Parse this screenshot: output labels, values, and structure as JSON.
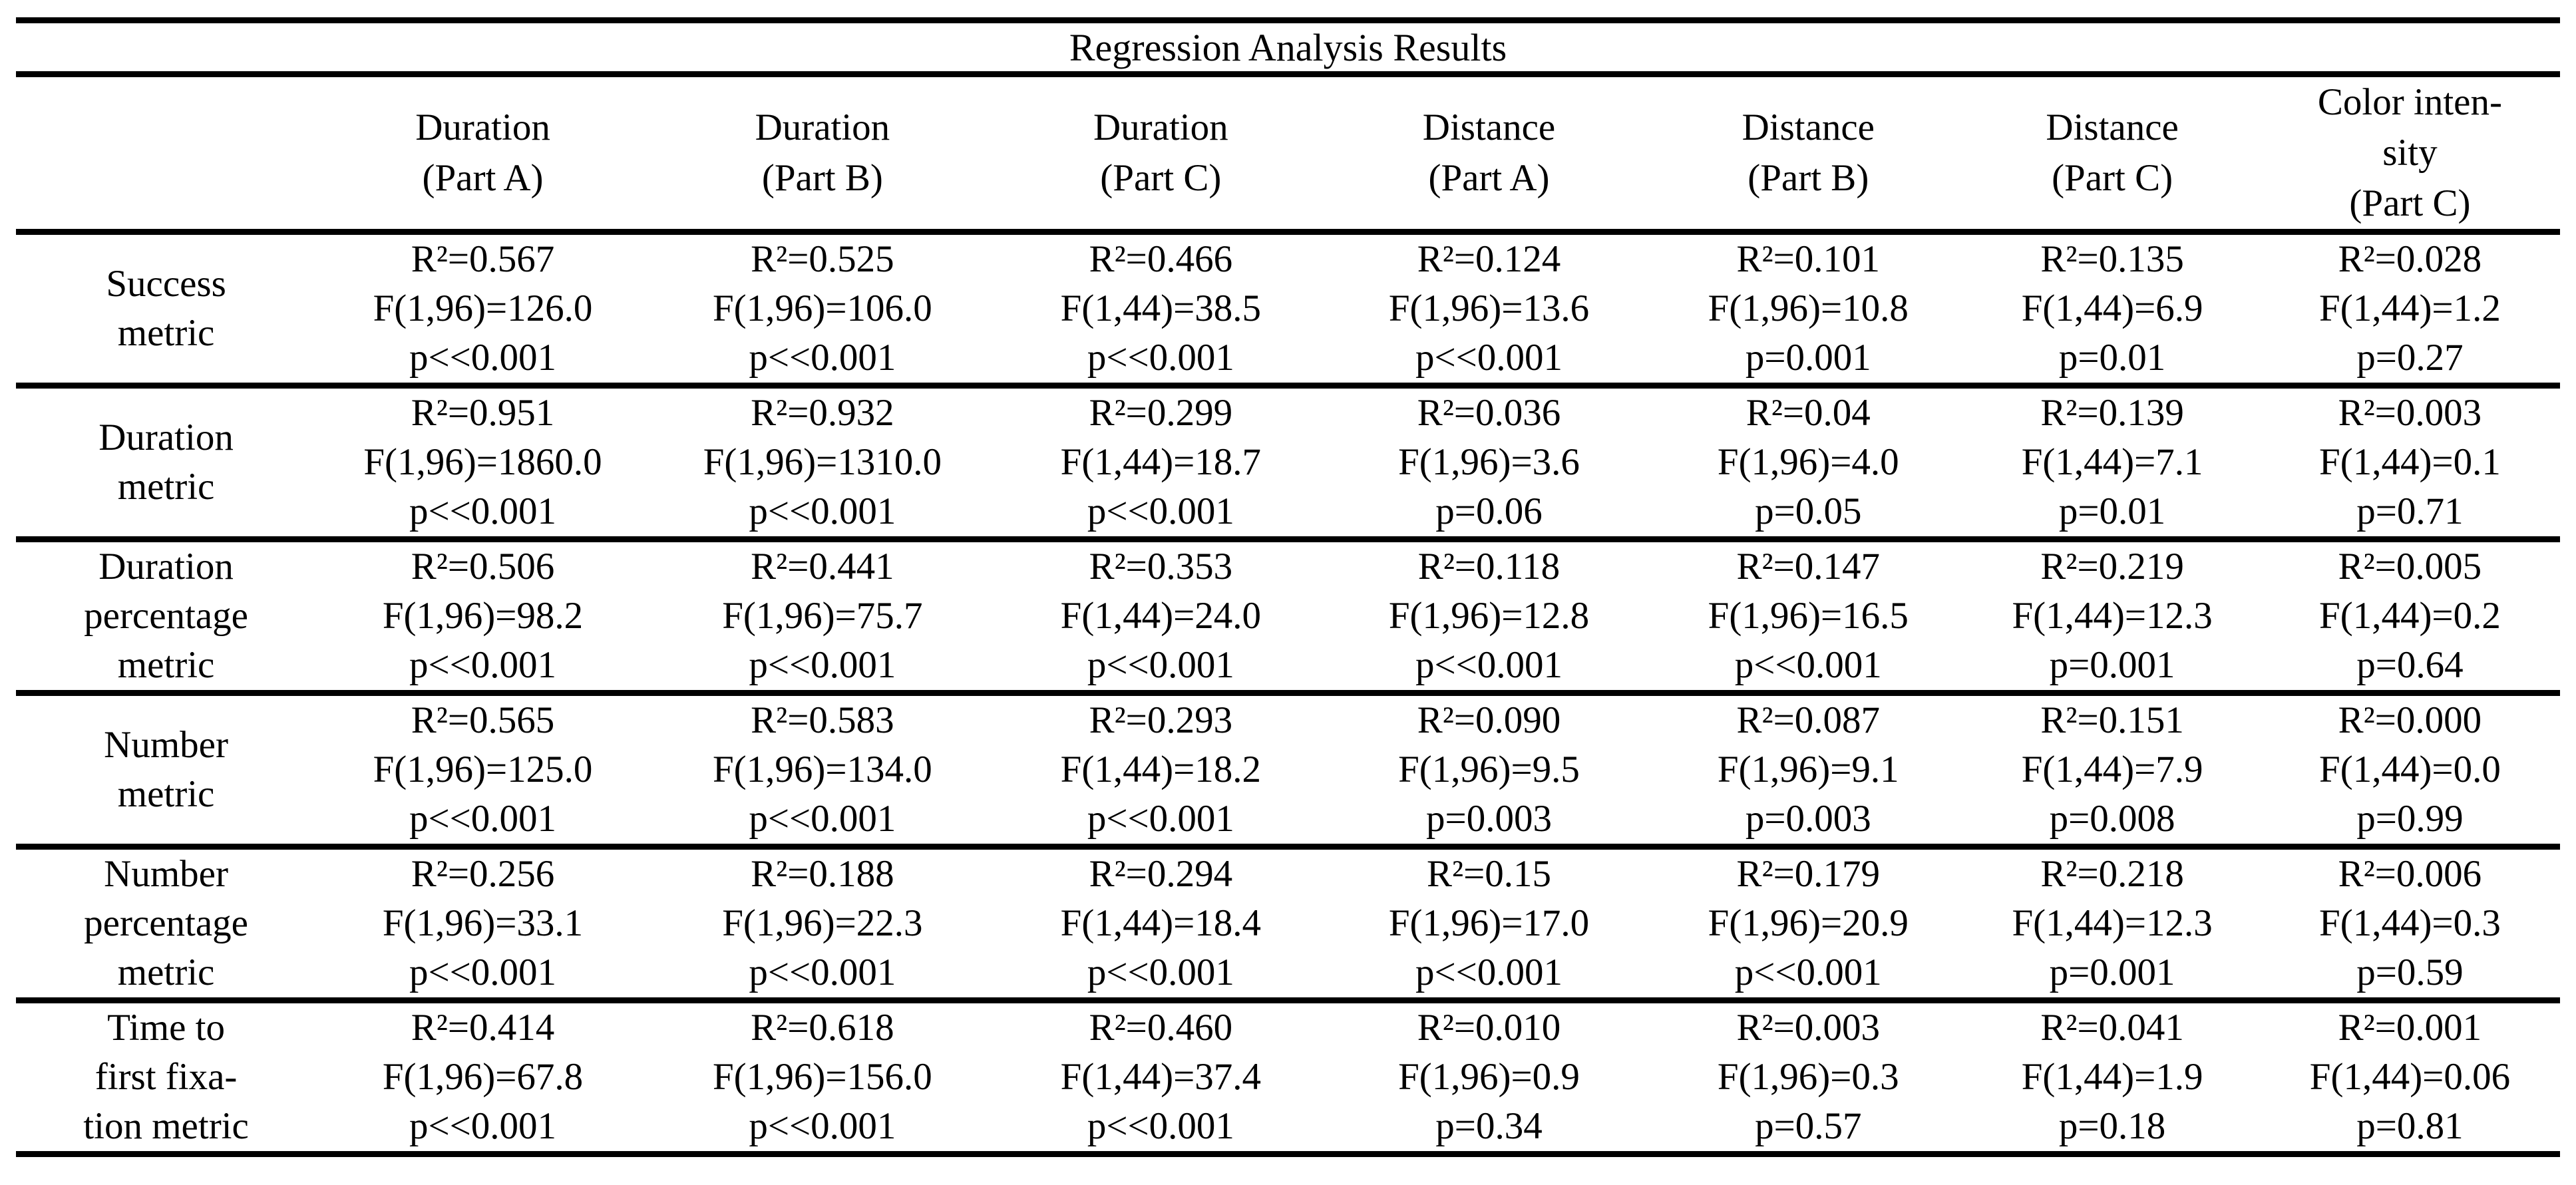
{
  "table": {
    "title": "Regression Analysis Results",
    "header": {
      "columns": [
        {
          "lines": [
            "Duration",
            "(Part A)"
          ]
        },
        {
          "lines": [
            "Duration",
            "(Part B)"
          ]
        },
        {
          "lines": [
            "Duration",
            "(Part C)"
          ]
        },
        {
          "lines": [
            "Distance",
            "(Part A)"
          ]
        },
        {
          "lines": [
            "Distance",
            "(Part B)"
          ]
        },
        {
          "lines": [
            "Distance",
            "(Part C)"
          ]
        },
        {
          "lines": [
            "Color inten-",
            "sity",
            "(Part C)"
          ]
        }
      ]
    },
    "rows": [
      {
        "label_lines": [
          "Success",
          "metric"
        ],
        "cells": [
          {
            "r2": "R²=0.567",
            "f": "F(1,96)=126.0",
            "p": "p<<0.001"
          },
          {
            "r2": "R²=0.525",
            "f": "F(1,96)=106.0",
            "p": "p<<0.001"
          },
          {
            "r2": "R²=0.466",
            "f": "F(1,44)=38.5",
            "p": "p<<0.001"
          },
          {
            "r2": "R²=0.124",
            "f": "F(1,96)=13.6",
            "p": "p<<0.001"
          },
          {
            "r2": "R²=0.101",
            "f": "F(1,96)=10.8",
            "p": "p=0.001"
          },
          {
            "r2": "R²=0.135",
            "f": "F(1,44)=6.9",
            "p": "p=0.01"
          },
          {
            "r2": "R²=0.028",
            "f": "F(1,44)=1.2",
            "p": "p=0.27"
          }
        ]
      },
      {
        "label_lines": [
          "Duration",
          "metric"
        ],
        "cells": [
          {
            "r2": "R²=0.951",
            "f": "F(1,96)=1860.0",
            "p": "p<<0.001"
          },
          {
            "r2": "R²=0.932",
            "f": "F(1,96)=1310.0",
            "p": "p<<0.001"
          },
          {
            "r2": "R²=0.299",
            "f": "F(1,44)=18.7",
            "p": "p<<0.001"
          },
          {
            "r2": "R²=0.036",
            "f": "F(1,96)=3.6",
            "p": "p=0.06"
          },
          {
            "r2": "R²=0.04",
            "f": "F(1,96)=4.0",
            "p": "p=0.05"
          },
          {
            "r2": "R²=0.139",
            "f": "F(1,44)=7.1",
            "p": "p=0.01"
          },
          {
            "r2": "R²=0.003",
            "f": "F(1,44)=0.1",
            "p": "p=0.71"
          }
        ]
      },
      {
        "label_lines": [
          "Duration",
          "percentage",
          "metric"
        ],
        "cells": [
          {
            "r2": "R²=0.506",
            "f": "F(1,96)=98.2",
            "p": "p<<0.001"
          },
          {
            "r2": "R²=0.441",
            "f": "F(1,96)=75.7",
            "p": "p<<0.001"
          },
          {
            "r2": "R²=0.353",
            "f": "F(1,44)=24.0",
            "p": "p<<0.001"
          },
          {
            "r2": "R²=0.118",
            "f": "F(1,96)=12.8",
            "p": "p<<0.001"
          },
          {
            "r2": "R²=0.147",
            "f": "F(1,96)=16.5",
            "p": "p<<0.001"
          },
          {
            "r2": "R²=0.219",
            "f": "F(1,44)=12.3",
            "p": "p=0.001"
          },
          {
            "r2": "R²=0.005",
            "f": "F(1,44)=0.2",
            "p": "p=0.64"
          }
        ]
      },
      {
        "label_lines": [
          "Number",
          "metric"
        ],
        "cells": [
          {
            "r2": "R²=0.565",
            "f": "F(1,96)=125.0",
            "p": "p<<0.001"
          },
          {
            "r2": "R²=0.583",
            "f": "F(1,96)=134.0",
            "p": "p<<0.001"
          },
          {
            "r2": "R²=0.293",
            "f": "F(1,44)=18.2",
            "p": "p<<0.001"
          },
          {
            "r2": "R²=0.090",
            "f": "F(1,96)=9.5",
            "p": "p=0.003"
          },
          {
            "r2": "R²=0.087",
            "f": "F(1,96)=9.1",
            "p": "p=0.003"
          },
          {
            "r2": "R²=0.151",
            "f": "F(1,44)=7.9",
            "p": "p=0.008"
          },
          {
            "r2": "R²=0.000",
            "f": "F(1,44)=0.0",
            "p": "p=0.99"
          }
        ]
      },
      {
        "label_lines": [
          "Number",
          "percentage",
          "metric"
        ],
        "cells": [
          {
            "r2": "R²=0.256",
            "f": "F(1,96)=33.1",
            "p": "p<<0.001"
          },
          {
            "r2": "R²=0.188",
            "f": "F(1,96)=22.3",
            "p": "p<<0.001"
          },
          {
            "r2": "R²=0.294",
            "f": "F(1,44)=18.4",
            "p": "p<<0.001"
          },
          {
            "r2": "R²=0.15",
            "f": "F(1,96)=17.0",
            "p": "p<<0.001"
          },
          {
            "r2": "R²=0.179",
            "f": "F(1,96)=20.9",
            "p": "p<<0.001"
          },
          {
            "r2": "R²=0.218",
            "f": "F(1,44)=12.3",
            "p": "p=0.001"
          },
          {
            "r2": "R²=0.006",
            "f": "F(1,44)=0.3",
            "p": "p=0.59"
          }
        ]
      },
      {
        "label_lines": [
          "Time to",
          "first fixa-",
          "tion metric"
        ],
        "cells": [
          {
            "r2": "R²=0.414",
            "f": "F(1,96)=67.8",
            "p": "p<<0.001"
          },
          {
            "r2": "R²=0.618",
            "f": "F(1,96)=156.0",
            "p": "p<<0.001"
          },
          {
            "r2": "R²=0.460",
            "f": "F(1,44)=37.4",
            "p": "p<<0.001"
          },
          {
            "r2": "R²=0.010",
            "f": "F(1,96)=0.9",
            "p": "p=0.34"
          },
          {
            "r2": "R²=0.003",
            "f": "F(1,96)=0.3",
            "p": "p=0.57"
          },
          {
            "r2": "R²=0.041",
            "f": "F(1,44)=1.9",
            "p": "p=0.18"
          },
          {
            "r2": "R²=0.001",
            "f": "F(1,44)=0.06",
            "p": "p=0.81"
          }
        ]
      }
    ]
  }
}
